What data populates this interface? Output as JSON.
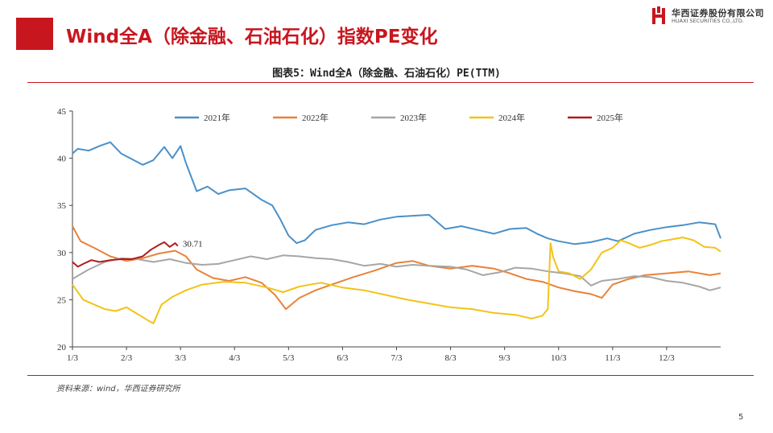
{
  "header": {
    "title": "Wind全A（除金融、石油石化）指数PE变化",
    "logo_cn": "华西证券股份有限公司",
    "logo_en": "HUAXI SECURITIES CO.,LTD."
  },
  "figure_title": "图表5：Wind全A（除金融、石油石化）PE(TTM)",
  "source": "资料来源：wind，华西证券研究所",
  "page_number": "5",
  "colors": {
    "accent": "#c8161e",
    "s2021": "#4a90c8",
    "s2022": "#e8823a",
    "s2023": "#a6a6a6",
    "s2024": "#f2c318",
    "s2025": "#b01c1c"
  },
  "chart_data": {
    "type": "line",
    "title": "图表5：Wind全A（除金融、石油石化）PE(TTM)",
    "xlabel": "",
    "ylabel": "",
    "x_ticks": [
      "1/3",
      "2/3",
      "3/3",
      "4/3",
      "5/3",
      "6/3",
      "7/3",
      "8/3",
      "9/3",
      "10/3",
      "11/3",
      "12/3"
    ],
    "x_range": [
      1,
      13
    ],
    "ylim": [
      20,
      45
    ],
    "y_ticks": [
      20,
      25,
      30,
      35,
      40,
      45
    ],
    "grid": false,
    "legend_position": "top",
    "end_label": "30.71",
    "series": [
      {
        "name": "2021年",
        "color": "#4a90c8",
        "points": [
          [
            1.0,
            40.5
          ],
          [
            1.1,
            41.0
          ],
          [
            1.3,
            40.8
          ],
          [
            1.5,
            41.3
          ],
          [
            1.7,
            41.7
          ],
          [
            1.9,
            40.5
          ],
          [
            2.1,
            39.9
          ],
          [
            2.3,
            39.3
          ],
          [
            2.5,
            39.8
          ],
          [
            2.7,
            41.2
          ],
          [
            2.85,
            40.0
          ],
          [
            3.0,
            41.3
          ],
          [
            3.1,
            39.5
          ],
          [
            3.3,
            36.5
          ],
          [
            3.5,
            37.0
          ],
          [
            3.7,
            36.2
          ],
          [
            3.9,
            36.6
          ],
          [
            4.2,
            36.8
          ],
          [
            4.5,
            35.6
          ],
          [
            4.7,
            35.0
          ],
          [
            4.85,
            33.5
          ],
          [
            5.0,
            31.8
          ],
          [
            5.15,
            31.0
          ],
          [
            5.3,
            31.3
          ],
          [
            5.5,
            32.4
          ],
          [
            5.8,
            32.9
          ],
          [
            6.1,
            33.2
          ],
          [
            6.4,
            33.0
          ],
          [
            6.7,
            33.5
          ],
          [
            7.0,
            33.8
          ],
          [
            7.3,
            33.9
          ],
          [
            7.6,
            34.0
          ],
          [
            7.9,
            32.5
          ],
          [
            8.2,
            32.8
          ],
          [
            8.5,
            32.4
          ],
          [
            8.8,
            32.0
          ],
          [
            9.1,
            32.5
          ],
          [
            9.4,
            32.6
          ],
          [
            9.6,
            32.0
          ],
          [
            9.8,
            31.5
          ],
          [
            10.0,
            31.2
          ],
          [
            10.3,
            30.9
          ],
          [
            10.6,
            31.1
          ],
          [
            10.9,
            31.5
          ],
          [
            11.1,
            31.2
          ],
          [
            11.4,
            32.0
          ],
          [
            11.7,
            32.4
          ],
          [
            12.0,
            32.7
          ],
          [
            12.3,
            32.9
          ],
          [
            12.6,
            33.2
          ],
          [
            12.9,
            33.0
          ],
          [
            13.0,
            31.5
          ]
        ]
      },
      {
        "name": "2022年",
        "color": "#e8823a",
        "points": [
          [
            1.0,
            32.8
          ],
          [
            1.15,
            31.2
          ],
          [
            1.4,
            30.5
          ],
          [
            1.7,
            29.6
          ],
          [
            2.0,
            29.1
          ],
          [
            2.3,
            29.4
          ],
          [
            2.6,
            29.9
          ],
          [
            2.9,
            30.2
          ],
          [
            3.1,
            29.6
          ],
          [
            3.3,
            28.2
          ],
          [
            3.6,
            27.3
          ],
          [
            3.9,
            27.0
          ],
          [
            4.2,
            27.4
          ],
          [
            4.5,
            26.8
          ],
          [
            4.75,
            25.5
          ],
          [
            4.95,
            24.0
          ],
          [
            5.2,
            25.2
          ],
          [
            5.5,
            26.0
          ],
          [
            5.8,
            26.6
          ],
          [
            6.2,
            27.4
          ],
          [
            6.6,
            28.1
          ],
          [
            7.0,
            28.9
          ],
          [
            7.3,
            29.1
          ],
          [
            7.6,
            28.6
          ],
          [
            8.0,
            28.3
          ],
          [
            8.4,
            28.6
          ],
          [
            8.8,
            28.3
          ],
          [
            9.1,
            27.8
          ],
          [
            9.4,
            27.2
          ],
          [
            9.7,
            26.9
          ],
          [
            10.0,
            26.3
          ],
          [
            10.3,
            25.9
          ],
          [
            10.6,
            25.6
          ],
          [
            10.8,
            25.2
          ],
          [
            11.0,
            26.6
          ],
          [
            11.3,
            27.2
          ],
          [
            11.6,
            27.6
          ],
          [
            12.0,
            27.8
          ],
          [
            12.4,
            28.0
          ],
          [
            12.8,
            27.6
          ],
          [
            13.0,
            27.8
          ]
        ]
      },
      {
        "name": "2023年",
        "color": "#a6a6a6",
        "points": [
          [
            1.0,
            27.2
          ],
          [
            1.3,
            28.2
          ],
          [
            1.6,
            29.0
          ],
          [
            1.9,
            29.4
          ],
          [
            2.2,
            29.3
          ],
          [
            2.5,
            29.0
          ],
          [
            2.8,
            29.3
          ],
          [
            3.1,
            28.9
          ],
          [
            3.4,
            28.7
          ],
          [
            3.7,
            28.8
          ],
          [
            4.0,
            29.2
          ],
          [
            4.3,
            29.6
          ],
          [
            4.6,
            29.3
          ],
          [
            4.9,
            29.7
          ],
          [
            5.2,
            29.6
          ],
          [
            5.5,
            29.4
          ],
          [
            5.8,
            29.3
          ],
          [
            6.1,
            29.0
          ],
          [
            6.4,
            28.6
          ],
          [
            6.7,
            28.8
          ],
          [
            7.0,
            28.5
          ],
          [
            7.3,
            28.7
          ],
          [
            7.6,
            28.6
          ],
          [
            8.0,
            28.5
          ],
          [
            8.3,
            28.2
          ],
          [
            8.6,
            27.6
          ],
          [
            8.9,
            27.9
          ],
          [
            9.2,
            28.4
          ],
          [
            9.5,
            28.3
          ],
          [
            9.8,
            28.0
          ],
          [
            10.1,
            27.8
          ],
          [
            10.4,
            27.5
          ],
          [
            10.6,
            26.5
          ],
          [
            10.8,
            27.0
          ],
          [
            11.1,
            27.2
          ],
          [
            11.4,
            27.5
          ],
          [
            11.7,
            27.4
          ],
          [
            12.0,
            27.0
          ],
          [
            12.3,
            26.8
          ],
          [
            12.6,
            26.4
          ],
          [
            12.8,
            26.0
          ],
          [
            13.0,
            26.3
          ]
        ]
      },
      {
        "name": "2024年",
        "color": "#f2c318",
        "points": [
          [
            1.0,
            26.6
          ],
          [
            1.2,
            25.0
          ],
          [
            1.4,
            24.5
          ],
          [
            1.6,
            24.0
          ],
          [
            1.8,
            23.8
          ],
          [
            2.0,
            24.2
          ],
          [
            2.2,
            23.5
          ],
          [
            2.4,
            22.8
          ],
          [
            2.5,
            22.5
          ],
          [
            2.65,
            24.5
          ],
          [
            2.85,
            25.3
          ],
          [
            3.1,
            26.0
          ],
          [
            3.4,
            26.6
          ],
          [
            3.8,
            26.9
          ],
          [
            4.2,
            26.8
          ],
          [
            4.6,
            26.3
          ],
          [
            4.9,
            25.8
          ],
          [
            5.2,
            26.4
          ],
          [
            5.6,
            26.8
          ],
          [
            6.0,
            26.3
          ],
          [
            6.4,
            26.0
          ],
          [
            6.8,
            25.5
          ],
          [
            7.2,
            25.0
          ],
          [
            7.6,
            24.6
          ],
          [
            8.0,
            24.2
          ],
          [
            8.4,
            24.0
          ],
          [
            8.8,
            23.6
          ],
          [
            9.2,
            23.4
          ],
          [
            9.5,
            23.0
          ],
          [
            9.7,
            23.3
          ],
          [
            9.8,
            24.0
          ],
          [
            9.85,
            31.0
          ],
          [
            9.9,
            29.5
          ],
          [
            10.0,
            28.0
          ],
          [
            10.2,
            27.8
          ],
          [
            10.4,
            27.2
          ],
          [
            10.6,
            28.2
          ],
          [
            10.8,
            30.0
          ],
          [
            11.0,
            30.5
          ],
          [
            11.15,
            31.3
          ],
          [
            11.3,
            31.0
          ],
          [
            11.5,
            30.5
          ],
          [
            11.7,
            30.8
          ],
          [
            11.9,
            31.2
          ],
          [
            12.1,
            31.4
          ],
          [
            12.3,
            31.6
          ],
          [
            12.5,
            31.3
          ],
          [
            12.7,
            30.6
          ],
          [
            12.9,
            30.5
          ],
          [
            13.0,
            30.1
          ]
        ]
      },
      {
        "name": "2025年",
        "color": "#b01c1c",
        "points": [
          [
            1.0,
            29.0
          ],
          [
            1.1,
            28.5
          ],
          [
            1.2,
            28.8
          ],
          [
            1.35,
            29.2
          ],
          [
            1.5,
            29.0
          ],
          [
            1.7,
            29.2
          ],
          [
            1.9,
            29.3
          ],
          [
            2.1,
            29.3
          ],
          [
            2.3,
            29.6
          ],
          [
            2.45,
            30.3
          ],
          [
            2.6,
            30.8
          ],
          [
            2.7,
            31.1
          ],
          [
            2.8,
            30.6
          ],
          [
            2.9,
            31.0
          ],
          [
            2.95,
            30.71
          ]
        ]
      }
    ]
  }
}
